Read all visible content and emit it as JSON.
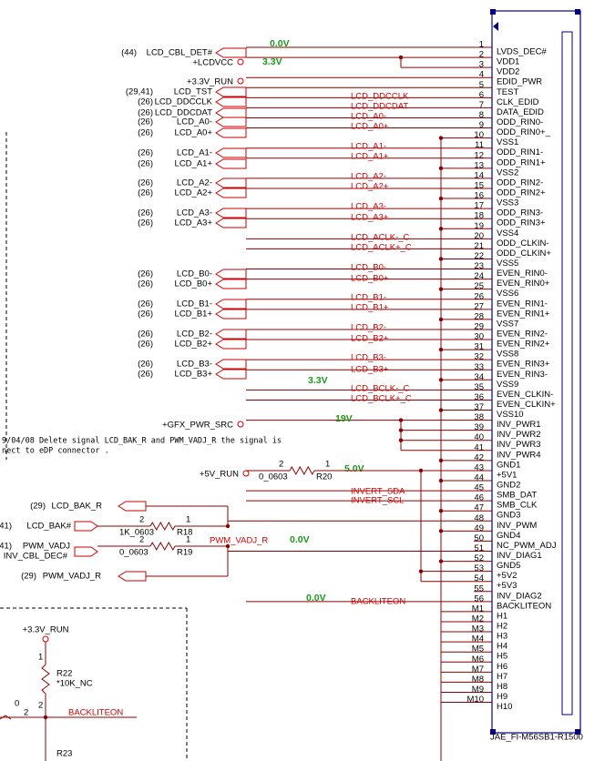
{
  "connector": {
    "part": "JAE_FI-M56SB1-R1500",
    "pins": [
      [
        "1",
        "LVDS_DEC#"
      ],
      [
        "2",
        "VDD1"
      ],
      [
        "3",
        "VDD2"
      ],
      [
        "4",
        "EDID_PWR"
      ],
      [
        "5",
        "TEST"
      ],
      [
        "6",
        "CLK_EDID"
      ],
      [
        "7",
        "DATA_EDID"
      ],
      [
        "8",
        "ODD_RIN0-"
      ],
      [
        "9",
        "ODD_RIN0+_"
      ],
      [
        "10",
        "VSS1"
      ],
      [
        "11",
        "ODD_RIN1-"
      ],
      [
        "12",
        "ODD_RIN1+"
      ],
      [
        "13",
        "VSS2"
      ],
      [
        "14",
        "ODD_RIN2-"
      ],
      [
        "15",
        "ODD_RIN2+"
      ],
      [
        "16",
        "VSS3"
      ],
      [
        "17",
        "ODD_RIN3-"
      ],
      [
        "18",
        "ODD_RIN3+"
      ],
      [
        "19",
        "VSS4"
      ],
      [
        "20",
        "ODD_CLKIN-"
      ],
      [
        "21",
        "ODD_CLKIN+"
      ],
      [
        "22",
        "VSS5"
      ],
      [
        "23",
        "EVEN_RIN0-"
      ],
      [
        "24",
        "EVEN_RIN0+"
      ],
      [
        "25",
        "VSS6"
      ],
      [
        "26",
        "EVEN_RIN1-"
      ],
      [
        "27",
        "EVEN_RIN1+"
      ],
      [
        "28",
        "VSS7"
      ],
      [
        "29",
        "EVEN_RIN2-"
      ],
      [
        "30",
        "EVEN_RIN2+"
      ],
      [
        "31",
        "VSS8"
      ],
      [
        "32",
        "EVEN_RIN3+"
      ],
      [
        "33",
        "EVEN_RIN3-"
      ],
      [
        "34",
        "VSS9"
      ],
      [
        "35",
        "EVEN_CLKIN-"
      ],
      [
        "36",
        "EVEN_CLKIN+"
      ],
      [
        "37",
        "VSS10"
      ],
      [
        "38",
        "INV_PWR1"
      ],
      [
        "39",
        "INV_PWR2"
      ],
      [
        "40",
        "INV_PWR3"
      ],
      [
        "41",
        "INV_PWR4"
      ],
      [
        "42",
        "GND1"
      ],
      [
        "43",
        "+5V1"
      ],
      [
        "44",
        "GND2"
      ],
      [
        "45",
        "SMB_DAT"
      ],
      [
        "46",
        "SMB_CLK"
      ],
      [
        "47",
        "GND3"
      ],
      [
        "48",
        "INV_PWM"
      ],
      [
        "49",
        "GND4"
      ],
      [
        "50",
        "NC_PWM_ADJ"
      ],
      [
        "51",
        "INV_DIAG1"
      ],
      [
        "52",
        "GND5"
      ],
      [
        "53",
        "+5V2"
      ],
      [
        "54",
        "+5V3"
      ],
      [
        "55",
        "INV_DIAG2"
      ],
      [
        "56",
        "BACKLITEON"
      ],
      [
        "M1",
        "H1"
      ],
      [
        "M2",
        "H2"
      ],
      [
        "M3",
        "H3"
      ],
      [
        "M4",
        "H4"
      ],
      [
        "M5",
        "H5"
      ],
      [
        "M6",
        "H6"
      ],
      [
        "M7",
        "H7"
      ],
      [
        "M8",
        "H8"
      ],
      [
        "M9",
        "H9"
      ],
      [
        "M10",
        "H10"
      ]
    ]
  },
  "left_nets": [
    {
      "ref": "(44)",
      "name": "LCD_CBL_DET#"
    },
    {
      "name": "+LCDVCC"
    },
    {
      "name": "+3.3V_RUN"
    },
    {
      "ref": "(29,41)",
      "name": "LCD_TST"
    },
    {
      "ref": "(26)",
      "name": "LCD_DDCCLK"
    },
    {
      "ref": "(26)",
      "name": "LCD_DDCDAT"
    },
    {
      "ref": "(26)",
      "name": "LCD_A0-"
    },
    {
      "ref": "(26)",
      "name": "LCD_A0+"
    },
    {
      "ref": "(26)",
      "name": "LCD_A1-"
    },
    {
      "ref": "(26)",
      "name": "LCD_A1+"
    },
    {
      "ref": "(26)",
      "name": "LCD_A2-"
    },
    {
      "ref": "(26)",
      "name": "LCD_A2+"
    },
    {
      "ref": "(26)",
      "name": "LCD_A3-"
    },
    {
      "ref": "(26)",
      "name": "LCD_A3+"
    },
    {
      "ref": "(26)",
      "name": "LCD_B0-"
    },
    {
      "ref": "(26)",
      "name": "LCD_B0+"
    },
    {
      "ref": "(26)",
      "name": "LCD_B1-"
    },
    {
      "ref": "(26)",
      "name": "LCD_B1+"
    },
    {
      "ref": "(26)",
      "name": "LCD_B2-"
    },
    {
      "ref": "(26)",
      "name": "LCD_B2+"
    },
    {
      "ref": "(26)",
      "name": "LCD_B3-"
    },
    {
      "ref": "(26)",
      "name": "LCD_B3+"
    },
    {
      "name": "+GFX_PWR_SRC"
    },
    {
      "name": "+5V_RUN"
    },
    {
      "ref": "(29)",
      "name": "LCD_BAK_R"
    },
    {
      "ref": "41)",
      "name": "LCD_BAK#"
    },
    {
      "ref": "41)",
      "name": "PWM_VADJ"
    },
    {
      "name": "INV_CBL_DEC#"
    },
    {
      "ref": "(29)",
      "name": "PWM_VADJ_R"
    },
    {
      "name": "+3.3V_RUN"
    }
  ],
  "red_labels": [
    "LCD_DDCCLK",
    "LCD_DDCDAT",
    "LCD_A0-",
    "LCD_A0+",
    "LCD_A1-",
    "LCD_A1+",
    "LCD_A2-",
    "LCD_A2+",
    "LCD_A3-",
    "LCD_A3+",
    "LCD_ACLK-_C",
    "LCD_ACLK+_C",
    "LCD_B0-",
    "LCD_B0+",
    "LCD_B1-",
    "LCD_B1+",
    "LCD_B2-",
    "LCD_B2+",
    "LCD_B3-",
    "LCD_B3+",
    "LCD_BCLK-_C",
    "LCD_BCLK+_C",
    "INVERT_SDA",
    "INVERT_SCL",
    "PWM_VADJ_R",
    "BACKLITEON",
    "BACKLITEON"
  ],
  "voltages": [
    "0.0V",
    "3.3V",
    "3.3V",
    "19V",
    "5.0V",
    "0.0V",
    "0.0V"
  ],
  "note": [
    "9/04/08 Delete signal  LCD_BAK_R and PWM_VADJ_R the signal is",
    "nect to eDP connector ."
  ],
  "resistors": [
    {
      "pin_a": "2",
      "pin_b": "1",
      "value": "0_0603",
      "ref": "R20"
    },
    {
      "pin_a": "2",
      "pin_b": "1",
      "value": "1K_0603",
      "ref": "R18"
    },
    {
      "pin_a": "2",
      "pin_b": "1",
      "value": "0_0603",
      "ref": "R19"
    }
  ],
  "r22": {
    "pin_top": "1",
    "ref": "R22",
    "value": "*10K_NC",
    "pin_bottom": "2"
  },
  "fragment": {
    "value": "0",
    "pin": "2",
    "ref": "R23"
  }
}
